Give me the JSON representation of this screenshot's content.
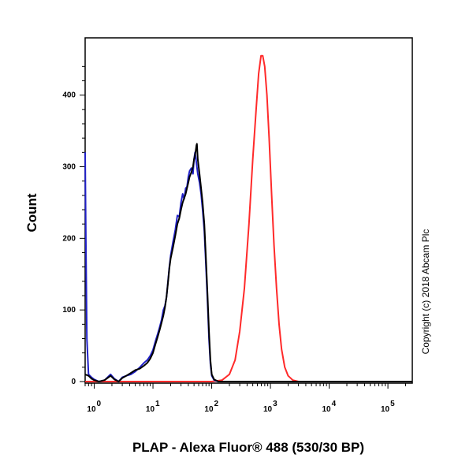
{
  "chart_data": {
    "type": "line",
    "xlabel": "PLAP - Alexa Fluor® 488 (530/30 BP)",
    "ylabel": "Count",
    "x_scale": "log",
    "xlim": [
      0.7,
      260000
    ],
    "ylim": [
      0,
      480
    ],
    "x_ticks": [
      {
        "value": 1,
        "base": "10",
        "exp": "0"
      },
      {
        "value": 10,
        "base": "10",
        "exp": "1"
      },
      {
        "value": 100,
        "base": "10",
        "exp": "2"
      },
      {
        "value": 1000,
        "base": "10",
        "exp": "3"
      },
      {
        "value": 10000,
        "base": "10",
        "exp": "4"
      },
      {
        "value": 100000,
        "base": "10",
        "exp": "5"
      }
    ],
    "y_ticks": [
      0,
      100,
      200,
      300,
      400
    ],
    "grid": false,
    "legend": "none",
    "series": [
      {
        "color": "#ff2a2a",
        "points": [
          [
            0.7,
            0
          ],
          [
            100,
            0
          ],
          [
            150,
            2
          ],
          [
            200,
            10
          ],
          [
            250,
            30
          ],
          [
            300,
            70
          ],
          [
            360,
            130
          ],
          [
            430,
            220
          ],
          [
            500,
            310
          ],
          [
            570,
            380
          ],
          [
            630,
            430
          ],
          [
            690,
            455
          ],
          [
            740,
            455
          ],
          [
            800,
            440
          ],
          [
            870,
            400
          ],
          [
            950,
            340
          ],
          [
            1050,
            260
          ],
          [
            1150,
            190
          ],
          [
            1270,
            130
          ],
          [
            1400,
            80
          ],
          [
            1550,
            45
          ],
          [
            1750,
            20
          ],
          [
            2000,
            8
          ],
          [
            2400,
            2
          ],
          [
            3000,
            0
          ],
          [
            260000,
            0
          ]
        ]
      },
      {
        "color": "#2020c8",
        "points": [
          [
            0.7,
            320
          ],
          [
            0.72,
            200
          ],
          [
            0.75,
            60
          ],
          [
            0.8,
            10
          ],
          [
            0.9,
            6
          ],
          [
            1.0,
            3
          ],
          [
            1.2,
            0
          ],
          [
            1.5,
            2
          ],
          [
            1.9,
            10
          ],
          [
            2.2,
            4
          ],
          [
            2.6,
            0
          ],
          [
            3.0,
            6
          ],
          [
            3.5,
            8
          ],
          [
            4.2,
            10
          ],
          [
            5,
            14
          ],
          [
            6,
            20
          ],
          [
            7,
            26
          ],
          [
            8,
            30
          ],
          [
            9,
            36
          ],
          [
            10,
            44
          ],
          [
            11,
            56
          ],
          [
            12,
            66
          ],
          [
            13,
            76
          ],
          [
            14,
            86
          ],
          [
            15,
            100
          ],
          [
            16,
            106
          ],
          [
            17,
            118
          ],
          [
            18,
            140
          ],
          [
            19,
            160
          ],
          [
            20,
            176
          ],
          [
            22,
            196
          ],
          [
            24,
            212
          ],
          [
            26,
            232
          ],
          [
            28,
            230
          ],
          [
            30,
            250
          ],
          [
            32,
            262
          ],
          [
            34,
            255
          ],
          [
            36,
            270
          ],
          [
            38,
            272
          ],
          [
            40,
            286
          ],
          [
            42,
            294
          ],
          [
            45,
            298
          ],
          [
            48,
            290
          ],
          [
            50,
            310
          ],
          [
            52,
            320
          ],
          [
            55,
            305
          ],
          [
            58,
            290
          ],
          [
            62,
            278
          ],
          [
            66,
            262
          ],
          [
            70,
            240
          ],
          [
            75,
            210
          ],
          [
            80,
            160
          ],
          [
            85,
            110
          ],
          [
            90,
            60
          ],
          [
            95,
            25
          ],
          [
            100,
            8
          ],
          [
            110,
            2
          ],
          [
            130,
            0
          ],
          [
            260000,
            0
          ]
        ]
      },
      {
        "color": "#000000",
        "points": [
          [
            0.7,
            10
          ],
          [
            0.8,
            8
          ],
          [
            0.9,
            4
          ],
          [
            1.0,
            2
          ],
          [
            1.2,
            0
          ],
          [
            1.5,
            2
          ],
          [
            1.9,
            8
          ],
          [
            2.2,
            3
          ],
          [
            2.6,
            0
          ],
          [
            3.0,
            5
          ],
          [
            3.5,
            8
          ],
          [
            4.2,
            12
          ],
          [
            5,
            16
          ],
          [
            6,
            18
          ],
          [
            7,
            22
          ],
          [
            8,
            26
          ],
          [
            9,
            32
          ],
          [
            10,
            40
          ],
          [
            11,
            52
          ],
          [
            12,
            62
          ],
          [
            13,
            72
          ],
          [
            14,
            82
          ],
          [
            15,
            92
          ],
          [
            16,
            104
          ],
          [
            17,
            118
          ],
          [
            18,
            138
          ],
          [
            19,
            158
          ],
          [
            20,
            172
          ],
          [
            22,
            188
          ],
          [
            24,
            204
          ],
          [
            26,
            220
          ],
          [
            28,
            228
          ],
          [
            30,
            240
          ],
          [
            32,
            250
          ],
          [
            34,
            256
          ],
          [
            36,
            262
          ],
          [
            38,
            270
          ],
          [
            40,
            278
          ],
          [
            42,
            286
          ],
          [
            45,
            292
          ],
          [
            48,
            300
          ],
          [
            50,
            310
          ],
          [
            53,
            320
          ],
          [
            55,
            330
          ],
          [
            56,
            332
          ],
          [
            58,
            310
          ],
          [
            62,
            290
          ],
          [
            66,
            270
          ],
          [
            70,
            250
          ],
          [
            75,
            220
          ],
          [
            80,
            170
          ],
          [
            85,
            120
          ],
          [
            90,
            70
          ],
          [
            95,
            30
          ],
          [
            100,
            10
          ],
          [
            110,
            3
          ],
          [
            130,
            0
          ],
          [
            260000,
            0
          ]
        ]
      }
    ]
  },
  "copyright": "Copyright (c) 2018 Abcam Plc"
}
